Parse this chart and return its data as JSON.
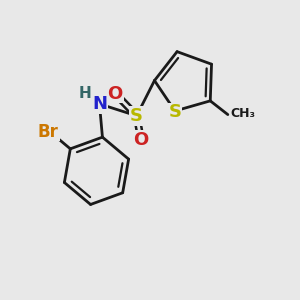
{
  "bg_color": "#e8e8e8",
  "bond_color": "#1a1a1a",
  "bond_width": 2.0,
  "S_sulfonyl_color": "#b8b800",
  "S_thiophene_color": "#b8b800",
  "N_color": "#2222cc",
  "O_color": "#cc2222",
  "Br_color": "#cc7700",
  "H_color": "#336666",
  "C_color": "#1a1a1a",
  "figsize": [
    3.0,
    3.0
  ],
  "dpi": 100,
  "xlim": [
    0,
    10
  ],
  "ylim": [
    0,
    10
  ]
}
